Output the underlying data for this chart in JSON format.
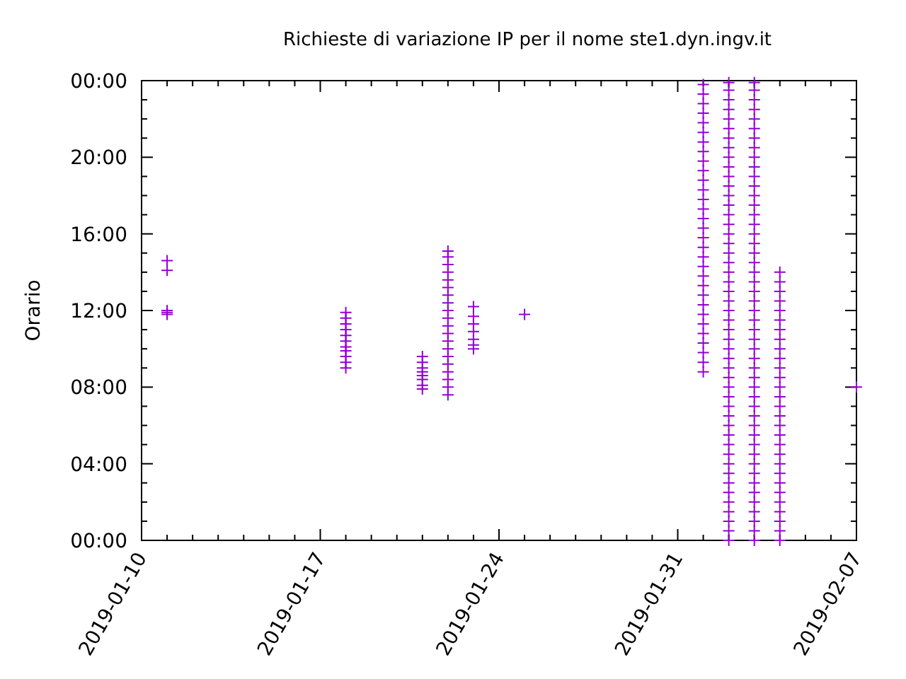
{
  "chart_data": {
    "type": "scatter",
    "title": "Richieste di variazione IP per il nome ste1.dyn.ingv.it",
    "ylabel": "Orario",
    "marker": "cross",
    "grid": false,
    "xlim": [
      "2019-01-10",
      "2019-02-07"
    ],
    "xticks": [
      "2019-01-10",
      {
        "value": "2019-01-11",
        "label": null
      },
      {
        "value": "2019-01-12",
        "label": null
      },
      {
        "value": "2019-01-13",
        "label": null
      },
      {
        "value": "2019-01-14",
        "label": null
      },
      {
        "value": "2019-01-15",
        "label": null
      },
      {
        "value": "2019-01-16",
        "label": null
      },
      "2019-01-17",
      {
        "value": "2019-01-18",
        "label": null
      },
      {
        "value": "2019-01-19",
        "label": null
      },
      {
        "value": "2019-01-20",
        "label": null
      },
      {
        "value": "2019-01-21",
        "label": null
      },
      {
        "value": "2019-01-22",
        "label": null
      },
      {
        "value": "2019-01-23",
        "label": null
      },
      "2019-01-24",
      {
        "value": "2019-01-25",
        "label": null
      },
      {
        "value": "2019-01-26",
        "label": null
      },
      {
        "value": "2019-01-27",
        "label": null
      },
      {
        "value": "2019-01-28",
        "label": null
      },
      {
        "value": "2019-01-29",
        "label": null
      },
      {
        "value": "2019-01-30",
        "label": null
      },
      "2019-01-31",
      {
        "value": "2019-02-01",
        "label": null
      },
      {
        "value": "2019-02-02",
        "label": null
      },
      {
        "value": "2019-02-03",
        "label": null
      },
      {
        "value": "2019-02-04",
        "label": null
      },
      {
        "value": "2019-02-05",
        "label": null
      },
      {
        "value": "2019-02-06",
        "label": null
      },
      "2019-02-07"
    ],
    "ylim": [
      0,
      24
    ],
    "yticks": [
      {
        "value": 0,
        "label": "00:00"
      },
      {
        "value": 1,
        "label": null
      },
      {
        "value": 2,
        "label": null
      },
      {
        "value": 3,
        "label": null
      },
      {
        "value": 4,
        "label": "04:00"
      },
      {
        "value": 5,
        "label": null
      },
      {
        "value": 6,
        "label": null
      },
      {
        "value": 7,
        "label": null
      },
      {
        "value": 8,
        "label": "08:00"
      },
      {
        "value": 9,
        "label": null
      },
      {
        "value": 10,
        "label": null
      },
      {
        "value": 11,
        "label": null
      },
      {
        "value": 12,
        "label": "12:00"
      },
      {
        "value": 13,
        "label": null
      },
      {
        "value": 14,
        "label": null
      },
      {
        "value": 15,
        "label": null
      },
      {
        "value": 16,
        "label": "16:00"
      },
      {
        "value": 17,
        "label": null
      },
      {
        "value": 18,
        "label": null
      },
      {
        "value": 19,
        "label": null
      },
      {
        "value": 20,
        "label": "20:00"
      },
      {
        "value": 21,
        "label": null
      },
      {
        "value": 22,
        "label": null
      },
      {
        "value": 23,
        "label": null
      },
      {
        "value": 24,
        "label": "00:00"
      }
    ],
    "series": [
      {
        "color": "#9400d3",
        "x": [
          "2019-01-11",
          "2019-01-11",
          "2019-01-11",
          "2019-01-11",
          "2019-01-11",
          "2019-01-18",
          "2019-01-18",
          "2019-01-18",
          "2019-01-18",
          "2019-01-18",
          "2019-01-18",
          "2019-01-18",
          "2019-01-18",
          "2019-01-18",
          "2019-01-18",
          "2019-01-18",
          "2019-01-21",
          "2019-01-21",
          "2019-01-21",
          "2019-01-21",
          "2019-01-21",
          "2019-01-21",
          "2019-01-21",
          "2019-01-21",
          "2019-01-22",
          "2019-01-22",
          "2019-01-22",
          "2019-01-22",
          "2019-01-22",
          "2019-01-22",
          "2019-01-22",
          "2019-01-22",
          "2019-01-22",
          "2019-01-22",
          "2019-01-22",
          "2019-01-22",
          "2019-01-22",
          "2019-01-22",
          "2019-01-22",
          "2019-01-22",
          "2019-01-22",
          "2019-01-22",
          "2019-01-22",
          "2019-01-22",
          "2019-01-23",
          "2019-01-23",
          "2019-01-23",
          "2019-01-23",
          "2019-01-23",
          "2019-01-23",
          "2019-01-23",
          "2019-01-25",
          "2019-02-01",
          "2019-02-01",
          "2019-02-01",
          "2019-02-01",
          "2019-02-01",
          "2019-02-01",
          "2019-02-01",
          "2019-02-01",
          "2019-02-01",
          "2019-02-01",
          "2019-02-01",
          "2019-02-01",
          "2019-02-01",
          "2019-02-01",
          "2019-02-01",
          "2019-02-01",
          "2019-02-01",
          "2019-02-01",
          "2019-02-01",
          "2019-02-01",
          "2019-02-01",
          "2019-02-01",
          "2019-02-01",
          "2019-02-01",
          "2019-02-01",
          "2019-02-01",
          "2019-02-01",
          "2019-02-01",
          "2019-02-01",
          "2019-02-01",
          "2019-02-01",
          "2019-02-02",
          "2019-02-02",
          "2019-02-02",
          "2019-02-02",
          "2019-02-02",
          "2019-02-02",
          "2019-02-02",
          "2019-02-02",
          "2019-02-02",
          "2019-02-02",
          "2019-02-02",
          "2019-02-02",
          "2019-02-02",
          "2019-02-02",
          "2019-02-02",
          "2019-02-02",
          "2019-02-02",
          "2019-02-02",
          "2019-02-02",
          "2019-02-02",
          "2019-02-02",
          "2019-02-02",
          "2019-02-02",
          "2019-02-02",
          "2019-02-02",
          "2019-02-02",
          "2019-02-02",
          "2019-02-02",
          "2019-02-02",
          "2019-02-02",
          "2019-02-02",
          "2019-02-02",
          "2019-02-02",
          "2019-02-02",
          "2019-02-02",
          "2019-02-02",
          "2019-02-02",
          "2019-02-02",
          "2019-02-02",
          "2019-02-02",
          "2019-02-02",
          "2019-02-02",
          "2019-02-02",
          "2019-02-02",
          "2019-02-02",
          "2019-02-02",
          "2019-02-02",
          "2019-02-02",
          "2019-02-02",
          "2019-02-03",
          "2019-02-03",
          "2019-02-03",
          "2019-02-03",
          "2019-02-03",
          "2019-02-03",
          "2019-02-03",
          "2019-02-03",
          "2019-02-03",
          "2019-02-03",
          "2019-02-03",
          "2019-02-03",
          "2019-02-03",
          "2019-02-03",
          "2019-02-03",
          "2019-02-03",
          "2019-02-03",
          "2019-02-03",
          "2019-02-03",
          "2019-02-03",
          "2019-02-03",
          "2019-02-03",
          "2019-02-03",
          "2019-02-03",
          "2019-02-03",
          "2019-02-03",
          "2019-02-03",
          "2019-02-03",
          "2019-02-03",
          "2019-02-03",
          "2019-02-03",
          "2019-02-03",
          "2019-02-03",
          "2019-02-03",
          "2019-02-03",
          "2019-02-03",
          "2019-02-03",
          "2019-02-03",
          "2019-02-03",
          "2019-02-03",
          "2019-02-03",
          "2019-02-03",
          "2019-02-03",
          "2019-02-03",
          "2019-02-03",
          "2019-02-03",
          "2019-02-03",
          "2019-02-03",
          "2019-02-03",
          "2019-02-04",
          "2019-02-04",
          "2019-02-04",
          "2019-02-04",
          "2019-02-04",
          "2019-02-04",
          "2019-02-04",
          "2019-02-04",
          "2019-02-04",
          "2019-02-04",
          "2019-02-04",
          "2019-02-04",
          "2019-02-04",
          "2019-02-04",
          "2019-02-04",
          "2019-02-04",
          "2019-02-04",
          "2019-02-04",
          "2019-02-04",
          "2019-02-04",
          "2019-02-04",
          "2019-02-04",
          "2019-02-04",
          "2019-02-04",
          "2019-02-04",
          "2019-02-04",
          "2019-02-04",
          "2019-02-04",
          "2019-02-04",
          "2019-02-07"
        ],
        "values": [
          14.6,
          14.1,
          12.0,
          11.9,
          11.8,
          11.9,
          11.6,
          11.3,
          11.0,
          10.7,
          10.4,
          10.1,
          9.9,
          9.6,
          9.3,
          9.0,
          9.6,
          9.3,
          9.0,
          8.8,
          8.6,
          8.4,
          8.1,
          7.9,
          15.1,
          14.8,
          14.4,
          14.0,
          13.6,
          13.2,
          12.8,
          12.4,
          12.0,
          11.6,
          11.2,
          10.8,
          10.4,
          10.0,
          9.6,
          9.2,
          8.8,
          8.4,
          8.0,
          7.6,
          12.2,
          11.7,
          11.3,
          10.9,
          10.5,
          10.2,
          10.0,
          11.8,
          8.8,
          9.3,
          9.8,
          10.3,
          10.8,
          11.3,
          11.8,
          12.3,
          12.8,
          13.3,
          13.8,
          14.3,
          14.8,
          15.3,
          15.8,
          16.3,
          16.8,
          17.3,
          17.8,
          18.3,
          18.8,
          19.3,
          19.8,
          20.3,
          20.8,
          21.3,
          21.8,
          22.3,
          22.8,
          23.3,
          23.8,
          0,
          0.5,
          1,
          1.5,
          2,
          2.5,
          3,
          3.5,
          4,
          4.5,
          5,
          5.5,
          6,
          6.5,
          7,
          7.5,
          8,
          8.5,
          9,
          9.5,
          10,
          10.5,
          11,
          11.5,
          12,
          12.5,
          13,
          13.5,
          14,
          14.5,
          15,
          15.5,
          16,
          16.5,
          17,
          17.5,
          18,
          18.5,
          19,
          19.5,
          20,
          20.5,
          21,
          21.5,
          22,
          22.5,
          23,
          23.5,
          23.9,
          0,
          0.5,
          1,
          1.5,
          2,
          2.5,
          3,
          3.5,
          4,
          4.5,
          5,
          5.5,
          6,
          6.5,
          7,
          7.5,
          8,
          8.5,
          9,
          9.5,
          10,
          10.5,
          11,
          11.5,
          12,
          12.5,
          13,
          13.5,
          14,
          14.5,
          15,
          15.5,
          16,
          16.5,
          17,
          17.5,
          18,
          18.5,
          19,
          19.5,
          20,
          20.5,
          21,
          21.5,
          22,
          22.5,
          23,
          23.5,
          23.9,
          0,
          0.5,
          1,
          1.5,
          2,
          2.5,
          3,
          3.5,
          4,
          4.5,
          5,
          5.5,
          6,
          6.5,
          7,
          7.5,
          8,
          8.5,
          9,
          9.5,
          10,
          10.5,
          11,
          11.5,
          12,
          12.5,
          13,
          13.5,
          14,
          8.0
        ]
      }
    ]
  }
}
